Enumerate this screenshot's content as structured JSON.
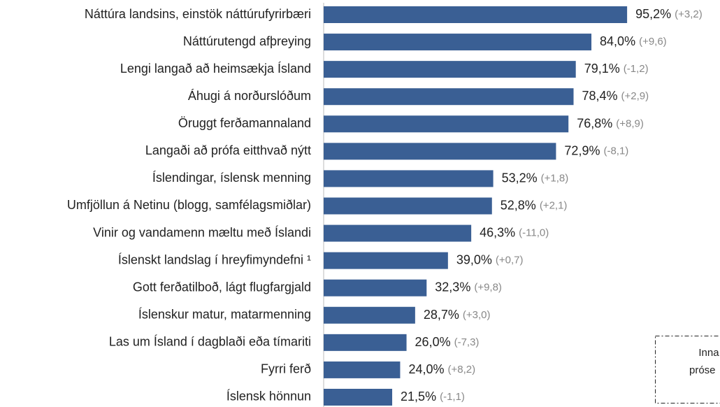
{
  "chart_data": {
    "type": "hbar",
    "categories": [
      "Náttúra landsins, einstök náttúrufyrirbæri",
      "Náttúrutengd afþreying",
      "Lengi langað að heimsækja Ísland",
      "Áhugi á norðurslóðum",
      "Öruggt ferðamannaland",
      "Langaði að prófa eitthvað nýtt",
      "Íslendingar, íslensk menning",
      "Umfjöllun á Netinu (blogg, samfélagsmiðlar)",
      "Vinir og vandamenn mæltu með Íslandi",
      "Íslenskt landslag í hreyfimyndefni ¹",
      "Gott ferðatilboð, lágt flugfargjald",
      "Íslenskur matur, matarmenning",
      "Las um Ísland í dagblaði eða tímariti",
      "Fyrri ferð",
      "Íslensk hönnun"
    ],
    "values": [
      95.2,
      84.0,
      79.1,
      78.4,
      76.8,
      72.9,
      53.2,
      52.8,
      46.3,
      39.0,
      32.3,
      28.7,
      26.0,
      24.0,
      21.5
    ],
    "value_labels": [
      "95,2%",
      "84,0%",
      "79,1%",
      "78,4%",
      "76,8%",
      "72,9%",
      "53,2%",
      "52,8%",
      "46,3%",
      "39,0%",
      "32,3%",
      "28,7%",
      "26,0%",
      "24,0%",
      "21,5%"
    ],
    "changes": [
      3.2,
      9.6,
      -1.2,
      2.9,
      8.9,
      -8.1,
      1.8,
      2.1,
      -11.0,
      0.7,
      9.8,
      3.0,
      -7.3,
      8.2,
      -1.1
    ],
    "change_labels": [
      "(+3,2)",
      "(+9,6)",
      "(-1,2)",
      "(+2,9)",
      "(+8,9)",
      "(-8,1)",
      "(+1,8)",
      "(+2,1)",
      "(-11,0)",
      "(+0,7)",
      "(+9,8)",
      "(+3,0)",
      "(-7,3)",
      "(+8,2)",
      "(-1,1)"
    ],
    "color": "#3a5f94",
    "xlim": [
      0,
      100
    ],
    "note": [
      "Inna",
      "próse"
    ]
  }
}
